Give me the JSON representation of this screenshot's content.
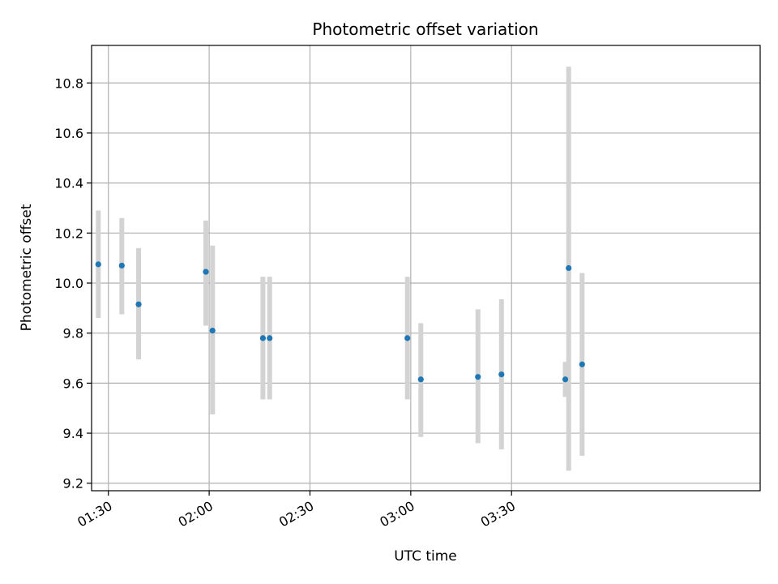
{
  "chart_data": {
    "type": "scatter",
    "title": "Photometric offset variation",
    "xlabel": "UTC time",
    "ylabel": "Photometric offset",
    "xlim": [
      "01:25",
      "04:44"
    ],
    "ylim": [
      9.17,
      10.95
    ],
    "grid": true,
    "legend": "none",
    "xticks": [
      "01:30",
      "02:00",
      "02:30",
      "03:00",
      "03:30"
    ],
    "yticks": [
      "9.2",
      "9.4",
      "9.6",
      "9.8",
      "10.0",
      "10.2",
      "10.4",
      "10.6",
      "10.8"
    ],
    "colors": {
      "point": "#1f77b4",
      "errorbar": "#d3d3d3",
      "grid": "#b0b0b0"
    },
    "points": [
      {
        "time": "01:27",
        "value": 10.075,
        "low": 9.86,
        "high": 10.29
      },
      {
        "time": "01:34",
        "value": 10.07,
        "low": 9.875,
        "high": 10.26
      },
      {
        "time": "01:39",
        "value": 9.915,
        "low": 9.695,
        "high": 10.14
      },
      {
        "time": "01:59",
        "value": 10.045,
        "low": 9.83,
        "high": 10.25
      },
      {
        "time": "02:01",
        "value": 9.81,
        "low": 9.475,
        "high": 10.15
      },
      {
        "time": "02:16",
        "value": 9.78,
        "low": 9.535,
        "high": 10.025
      },
      {
        "time": "02:18",
        "value": 9.78,
        "low": 9.535,
        "high": 10.025
      },
      {
        "time": "02:59",
        "value": 9.78,
        "low": 9.535,
        "high": 10.025
      },
      {
        "time": "03:03",
        "value": 9.615,
        "low": 9.385,
        "high": 9.84
      },
      {
        "time": "03:20",
        "value": 9.625,
        "low": 9.36,
        "high": 9.895
      },
      {
        "time": "03:27",
        "value": 9.635,
        "low": 9.335,
        "high": 9.935
      },
      {
        "time": "03:46",
        "value": 9.615,
        "low": 9.545,
        "high": 9.685
      },
      {
        "time": "03:47",
        "value": 10.06,
        "low": 9.25,
        "high": 10.865
      },
      {
        "time": "03:51",
        "value": 9.675,
        "low": 9.31,
        "high": 10.04
      }
    ]
  }
}
